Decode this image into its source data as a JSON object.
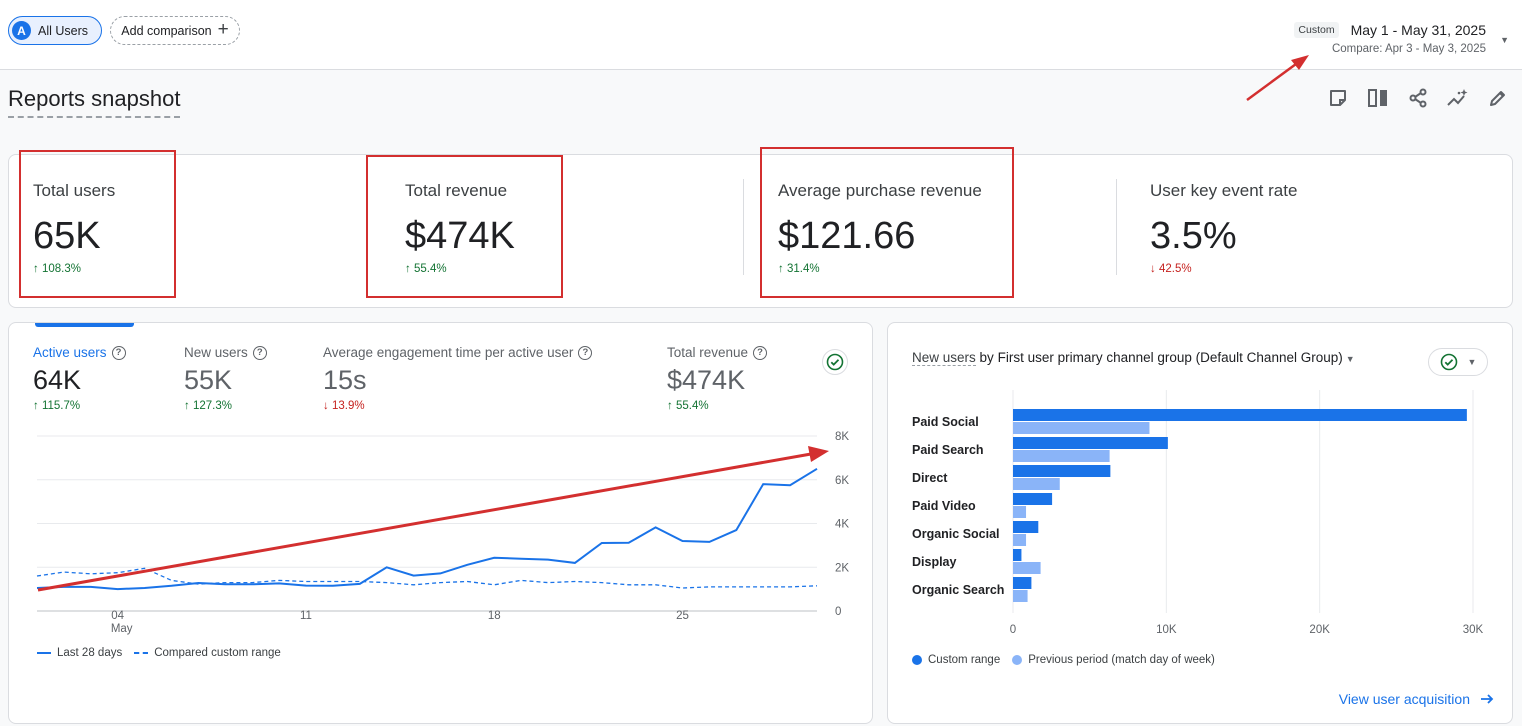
{
  "comparison": {
    "segment_initial": "A",
    "segment_label": "All Users",
    "add_label": "Add comparison",
    "add_icon": "plus-icon"
  },
  "date_range": {
    "tag": "Custom",
    "range": "May 1 - May 31, 2025",
    "compare": "Compare: Apr 3 - May 3, 2025",
    "caret_icon": "caret-down-icon"
  },
  "page": {
    "title": "Reports snapshot",
    "toolbar_icons": [
      "note-icon",
      "compare-columns-icon",
      "share-icon",
      "insights-icon",
      "edit-pencil-icon"
    ]
  },
  "kpis": [
    {
      "label": "Total users",
      "value": "65K",
      "change": "108.3%",
      "direction": "up"
    },
    {
      "label": "Total revenue",
      "value": "$474K",
      "change": "55.4%",
      "direction": "up"
    },
    {
      "label": "Average purchase revenue",
      "value": "$121.66",
      "change": "31.4%",
      "direction": "up"
    },
    {
      "label": "User key event rate",
      "value": "3.5%",
      "change": "42.5%",
      "direction": "down"
    }
  ],
  "line_card": {
    "metrics": [
      {
        "label": "Active users",
        "value": "64K",
        "change": "115.7%",
        "direction": "up",
        "active": true
      },
      {
        "label": "New users",
        "value": "55K",
        "change": "127.3%",
        "direction": "up",
        "active": false
      },
      {
        "label": "Average engagement time per active user",
        "value": "15s",
        "change": "13.9%",
        "direction": "down",
        "active": false
      },
      {
        "label": "Total revenue",
        "value": "$474K",
        "change": "55.4%",
        "direction": "up",
        "active": false
      }
    ],
    "check_icon": "check-circle-icon",
    "legend": {
      "current": "Last 28 days",
      "compare": "Compared custom range"
    }
  },
  "bar_card": {
    "title_metric": "New users",
    "title_by": "by",
    "title_dimension": "First user primary channel group (Default Channel Group)",
    "legend": {
      "current": "Custom range",
      "previous": "Previous period (match day of week)"
    },
    "link": "View user acquisition",
    "link_icon": "arrow-right-icon"
  },
  "colors": {
    "primary": "#1a73e8",
    "previous": "#8ab4f8",
    "up": "#137333",
    "down": "#c5221f",
    "annotation": "#d32f2f"
  },
  "chart_data": [
    {
      "type": "line",
      "title": "",
      "x_ticks": [
        {
          "x": 4,
          "label": "04",
          "sub": "May"
        },
        {
          "x": 11,
          "label": "11",
          "sub": ""
        },
        {
          "x": 18,
          "label": "18",
          "sub": ""
        },
        {
          "x": 25,
          "label": "25",
          "sub": ""
        }
      ],
      "y_ticks": [
        {
          "value": 0,
          "label": "0"
        },
        {
          "value": 2000,
          "label": "2K"
        },
        {
          "value": 4000,
          "label": "4K"
        },
        {
          "value": 6000,
          "label": "6K"
        },
        {
          "value": 8000,
          "label": "8K"
        }
      ],
      "xlim": [
        1,
        30
      ],
      "ylim": [
        0,
        8000
      ],
      "grid": true,
      "legend_position": "bottom-left",
      "series": [
        {
          "name": "Last 28 days",
          "style": "solid",
          "x": [
            1,
            2,
            3,
            4,
            5,
            6,
            7,
            8,
            9,
            10,
            11,
            12,
            13,
            14,
            15,
            16,
            17,
            18,
            19,
            20,
            21,
            22,
            23,
            24,
            25,
            26,
            27,
            28,
            29,
            30
          ],
          "values": [
            1050,
            1100,
            1100,
            1000,
            1050,
            1150,
            1280,
            1220,
            1220,
            1260,
            1160,
            1150,
            1240,
            2000,
            1620,
            1720,
            2110,
            2430,
            2390,
            2350,
            2200,
            3110,
            3120,
            3820,
            3200,
            3160,
            3700,
            5800,
            5750,
            6500
          ]
        },
        {
          "name": "Compared custom range",
          "style": "dashed",
          "x": [
            1,
            2,
            3,
            4,
            5,
            6,
            7,
            8,
            9,
            10,
            11,
            12,
            13,
            14,
            15,
            16,
            17,
            18,
            19,
            20,
            21,
            22,
            23,
            24,
            25,
            26,
            27,
            28,
            29,
            30
          ],
          "values": [
            1600,
            1780,
            1700,
            1750,
            1950,
            1400,
            1230,
            1300,
            1300,
            1400,
            1350,
            1350,
            1350,
            1300,
            1200,
            1300,
            1350,
            1200,
            1400,
            1300,
            1350,
            1300,
            1200,
            1200,
            1050,
            1100,
            1100,
            1100,
            1100,
            1150
          ]
        }
      ]
    },
    {
      "type": "bar",
      "orientation": "horizontal",
      "title": "",
      "categories": [
        "Paid Social",
        "Paid Search",
        "Direct",
        "Paid Video",
        "Organic Social",
        "Display",
        "Organic Search"
      ],
      "series": [
        {
          "name": "Custom range",
          "values": [
            29600,
            10100,
            6350,
            2550,
            1650,
            550,
            1200
          ]
        },
        {
          "name": "Previous period (match day of week)",
          "values": [
            8900,
            6300,
            3050,
            850,
            850,
            1800,
            950
          ]
        }
      ],
      "x_ticks": [
        {
          "value": 0,
          "label": "0"
        },
        {
          "value": 10000,
          "label": "10K"
        },
        {
          "value": 20000,
          "label": "20K"
        },
        {
          "value": 30000,
          "label": "30K"
        }
      ],
      "xlim": [
        0,
        30000
      ],
      "grid": true,
      "legend_position": "bottom-left"
    }
  ]
}
